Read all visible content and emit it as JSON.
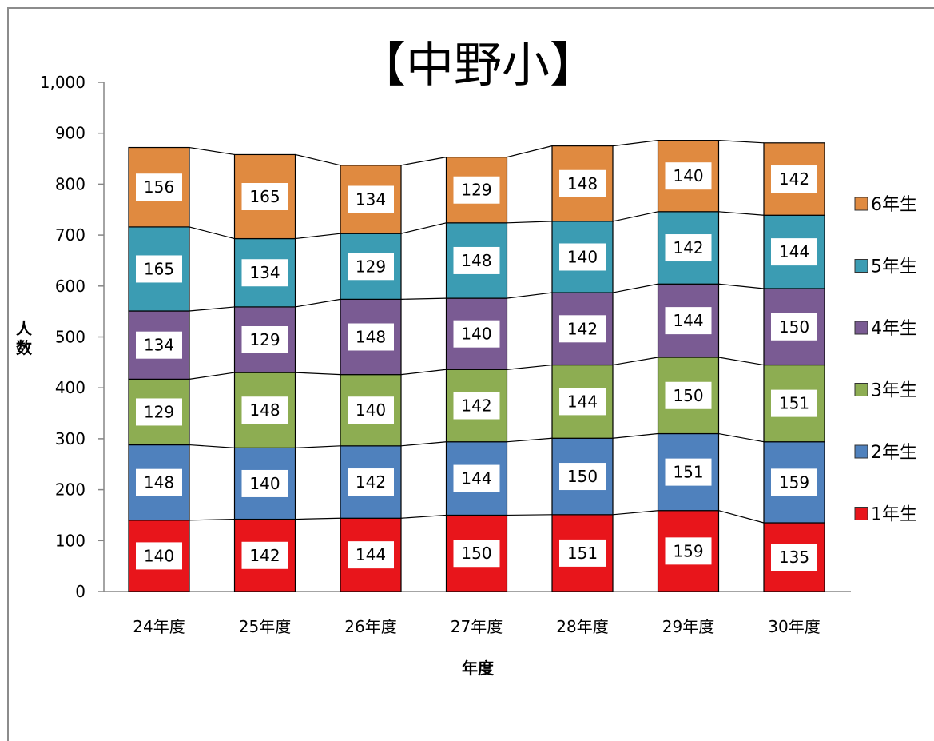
{
  "chart_data": {
    "type": "bar",
    "stacked": true,
    "title": "【中野小】",
    "xlabel": "年度",
    "ylabel": "人数",
    "ylim": [
      0,
      1000
    ],
    "yticks": [
      "0",
      "100",
      "200",
      "300",
      "400",
      "500",
      "600",
      "700",
      "800",
      "900",
      "1,000"
    ],
    "categories": [
      "24年度",
      "25年度",
      "26年度",
      "27年度",
      "28年度",
      "29年度",
      "30年度"
    ],
    "series": [
      {
        "name": "1年生",
        "color": "#e8151b",
        "values": [
          140,
          142,
          144,
          150,
          151,
          159,
          135
        ]
      },
      {
        "name": "2年生",
        "color": "#4f81bd",
        "values": [
          148,
          140,
          142,
          144,
          150,
          151,
          159
        ]
      },
      {
        "name": "3年生",
        "color": "#8dad52",
        "values": [
          129,
          148,
          140,
          142,
          144,
          150,
          151
        ]
      },
      {
        "name": "4年生",
        "color": "#7a5b93",
        "values": [
          134,
          129,
          148,
          140,
          142,
          144,
          150
        ]
      },
      {
        "name": "5年生",
        "color": "#3b9cb3",
        "values": [
          165,
          134,
          129,
          148,
          140,
          142,
          144
        ]
      },
      {
        "name": "6年生",
        "color": "#e08a40",
        "values": [
          156,
          165,
          134,
          129,
          148,
          140,
          142
        ]
      }
    ],
    "legend_position": "right",
    "grid": false,
    "series_lines": true
  }
}
